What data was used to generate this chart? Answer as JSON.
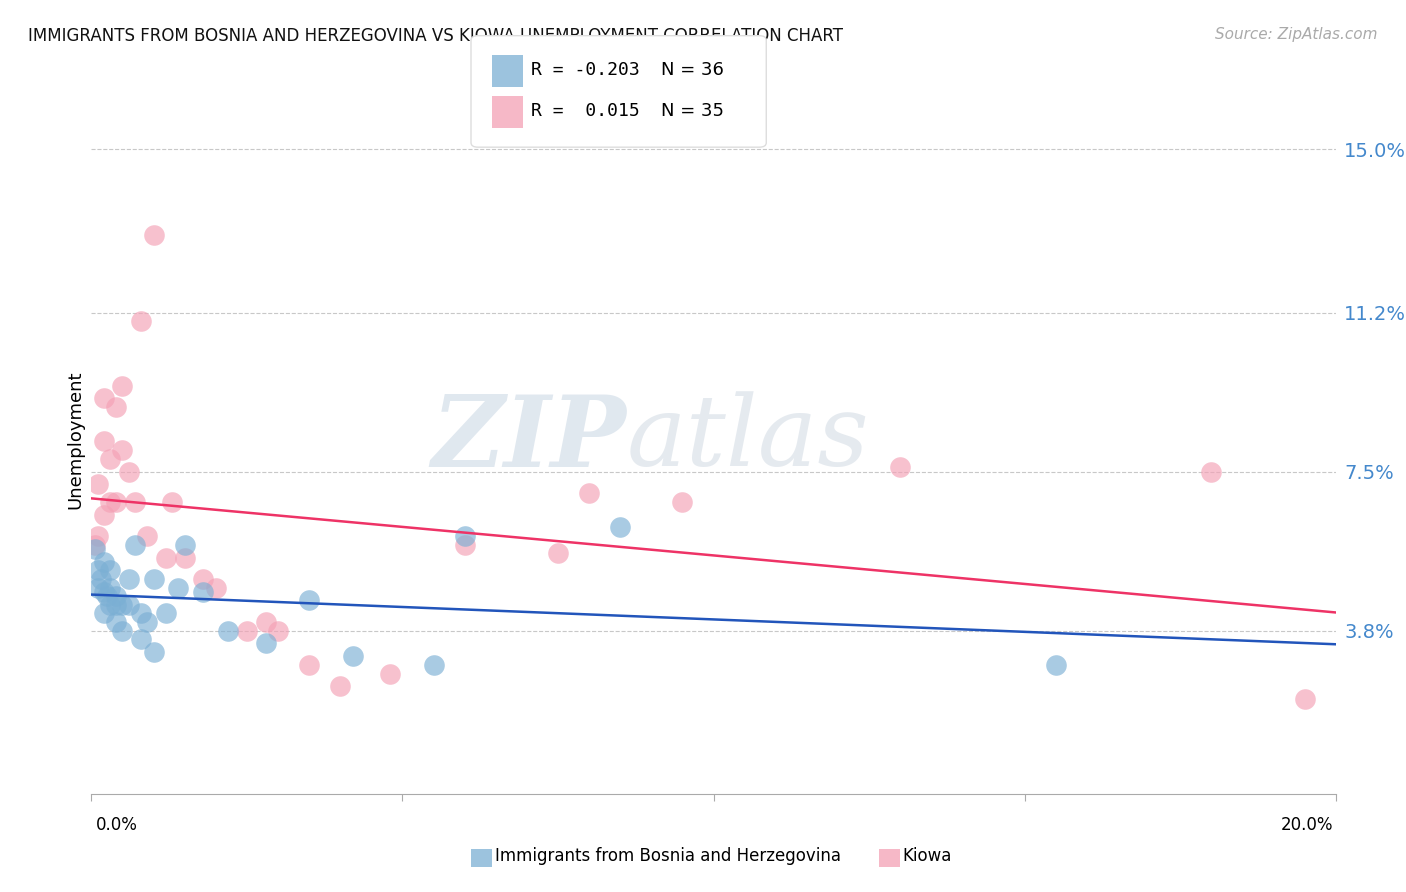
{
  "title": "IMMIGRANTS FROM BOSNIA AND HERZEGOVINA VS KIOWA UNEMPLOYMENT CORRELATION CHART",
  "source": "Source: ZipAtlas.com",
  "ylabel": "Unemployment",
  "yticks": [
    0.038,
    0.075,
    0.112,
    0.15
  ],
  "ytick_labels": [
    "3.8%",
    "7.5%",
    "11.2%",
    "15.0%"
  ],
  "xmin": 0.0,
  "xmax": 0.2,
  "ymin": 0.0,
  "ymax": 0.165,
  "watermark_zip": "ZIP",
  "watermark_atlas": "atlas",
  "blue_color": "#7BAFD4",
  "pink_color": "#F4A0B5",
  "blue_line_color": "#2255BB",
  "pink_line_color": "#EE3366",
  "blue_x": [
    0.0005,
    0.001,
    0.001,
    0.0015,
    0.002,
    0.002,
    0.002,
    0.0025,
    0.003,
    0.003,
    0.003,
    0.004,
    0.004,
    0.004,
    0.005,
    0.005,
    0.006,
    0.006,
    0.007,
    0.008,
    0.008,
    0.009,
    0.01,
    0.01,
    0.012,
    0.014,
    0.015,
    0.018,
    0.022,
    0.028,
    0.035,
    0.042,
    0.055,
    0.06,
    0.085,
    0.155
  ],
  "blue_y": [
    0.057,
    0.052,
    0.048,
    0.05,
    0.054,
    0.047,
    0.042,
    0.046,
    0.052,
    0.048,
    0.044,
    0.046,
    0.044,
    0.04,
    0.044,
    0.038,
    0.05,
    0.044,
    0.058,
    0.042,
    0.036,
    0.04,
    0.05,
    0.033,
    0.042,
    0.048,
    0.058,
    0.047,
    0.038,
    0.035,
    0.045,
    0.032,
    0.03,
    0.06,
    0.062,
    0.03
  ],
  "pink_x": [
    0.0005,
    0.001,
    0.001,
    0.002,
    0.002,
    0.002,
    0.003,
    0.003,
    0.004,
    0.004,
    0.005,
    0.005,
    0.006,
    0.007,
    0.008,
    0.009,
    0.01,
    0.012,
    0.013,
    0.015,
    0.018,
    0.02,
    0.025,
    0.028,
    0.03,
    0.035,
    0.04,
    0.048,
    0.06,
    0.075,
    0.08,
    0.095,
    0.13,
    0.18,
    0.195
  ],
  "pink_y": [
    0.058,
    0.072,
    0.06,
    0.092,
    0.082,
    0.065,
    0.078,
    0.068,
    0.09,
    0.068,
    0.095,
    0.08,
    0.075,
    0.068,
    0.11,
    0.06,
    0.13,
    0.055,
    0.068,
    0.055,
    0.05,
    0.048,
    0.038,
    0.04,
    0.038,
    0.03,
    0.025,
    0.028,
    0.058,
    0.056,
    0.07,
    0.068,
    0.076,
    0.075,
    0.022
  ],
  "label1": "Immigrants from Bosnia and Herzegovina",
  "label2": "Kiowa",
  "r1_text": "R = -0.203",
  "n1_text": "N = 36",
  "r2_text": "R =  0.015",
  "n2_text": "N = 35"
}
